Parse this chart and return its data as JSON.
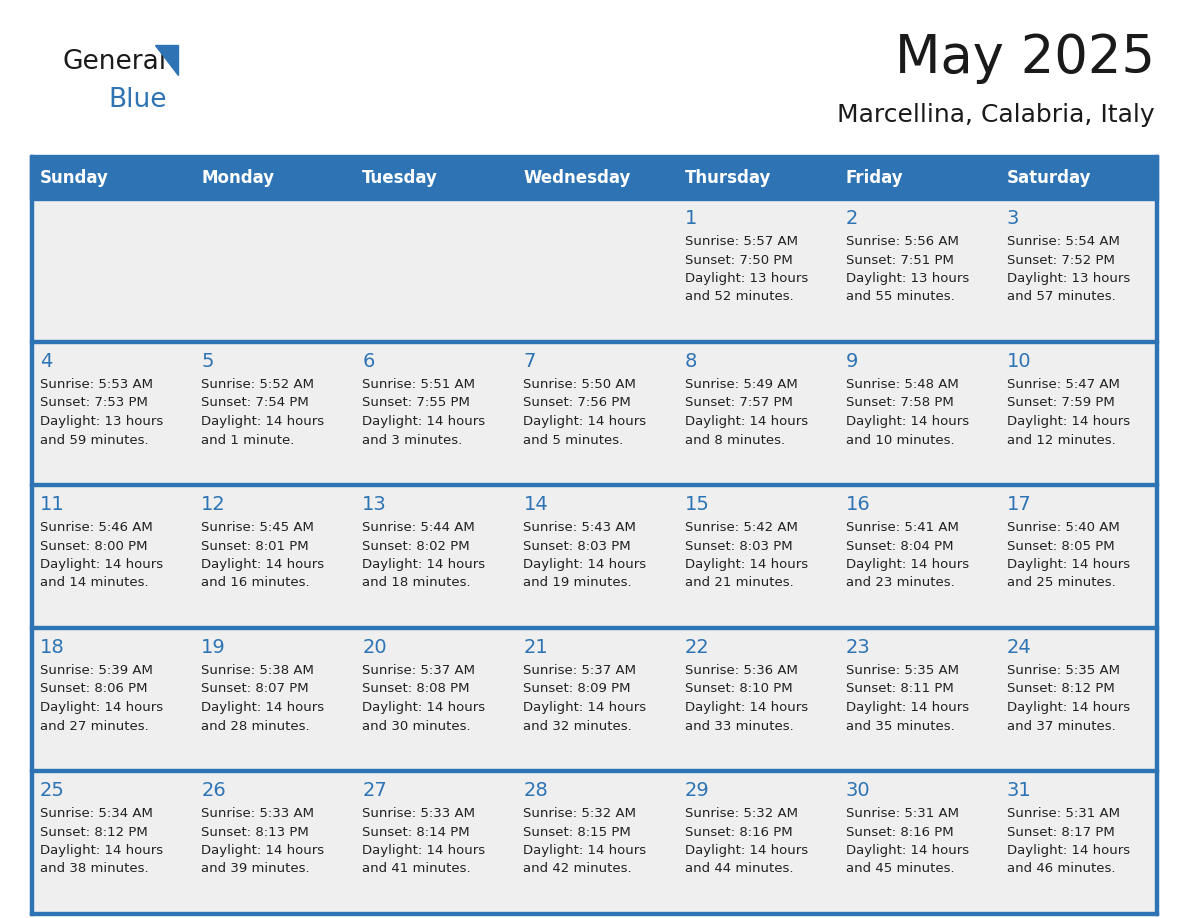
{
  "title": "May 2025",
  "subtitle": "Marcellina, Calabria, Italy",
  "days_of_week": [
    "Sunday",
    "Monday",
    "Tuesday",
    "Wednesday",
    "Thursday",
    "Friday",
    "Saturday"
  ],
  "header_bg": "#2E74B5",
  "header_text": "#FFFFFF",
  "row_bg": "#EFEFEF",
  "divider_color": "#2E74B5",
  "day_number_color": "#2E74B5",
  "cell_text_color": "#222222",
  "title_color": "#1a1a1a",
  "subtitle_color": "#1a1a1a",
  "logo_general_color": "#1a1a1a",
  "logo_blue_color": "#2E74B5",
  "calendar_data": [
    [
      {
        "day": "",
        "info": ""
      },
      {
        "day": "",
        "info": ""
      },
      {
        "day": "",
        "info": ""
      },
      {
        "day": "",
        "info": ""
      },
      {
        "day": "1",
        "info": "Sunrise: 5:57 AM\nSunset: 7:50 PM\nDaylight: 13 hours\nand 52 minutes."
      },
      {
        "day": "2",
        "info": "Sunrise: 5:56 AM\nSunset: 7:51 PM\nDaylight: 13 hours\nand 55 minutes."
      },
      {
        "day": "3",
        "info": "Sunrise: 5:54 AM\nSunset: 7:52 PM\nDaylight: 13 hours\nand 57 minutes."
      }
    ],
    [
      {
        "day": "4",
        "info": "Sunrise: 5:53 AM\nSunset: 7:53 PM\nDaylight: 13 hours\nand 59 minutes."
      },
      {
        "day": "5",
        "info": "Sunrise: 5:52 AM\nSunset: 7:54 PM\nDaylight: 14 hours\nand 1 minute."
      },
      {
        "day": "6",
        "info": "Sunrise: 5:51 AM\nSunset: 7:55 PM\nDaylight: 14 hours\nand 3 minutes."
      },
      {
        "day": "7",
        "info": "Sunrise: 5:50 AM\nSunset: 7:56 PM\nDaylight: 14 hours\nand 5 minutes."
      },
      {
        "day": "8",
        "info": "Sunrise: 5:49 AM\nSunset: 7:57 PM\nDaylight: 14 hours\nand 8 minutes."
      },
      {
        "day": "9",
        "info": "Sunrise: 5:48 AM\nSunset: 7:58 PM\nDaylight: 14 hours\nand 10 minutes."
      },
      {
        "day": "10",
        "info": "Sunrise: 5:47 AM\nSunset: 7:59 PM\nDaylight: 14 hours\nand 12 minutes."
      }
    ],
    [
      {
        "day": "11",
        "info": "Sunrise: 5:46 AM\nSunset: 8:00 PM\nDaylight: 14 hours\nand 14 minutes."
      },
      {
        "day": "12",
        "info": "Sunrise: 5:45 AM\nSunset: 8:01 PM\nDaylight: 14 hours\nand 16 minutes."
      },
      {
        "day": "13",
        "info": "Sunrise: 5:44 AM\nSunset: 8:02 PM\nDaylight: 14 hours\nand 18 minutes."
      },
      {
        "day": "14",
        "info": "Sunrise: 5:43 AM\nSunset: 8:03 PM\nDaylight: 14 hours\nand 19 minutes."
      },
      {
        "day": "15",
        "info": "Sunrise: 5:42 AM\nSunset: 8:03 PM\nDaylight: 14 hours\nand 21 minutes."
      },
      {
        "day": "16",
        "info": "Sunrise: 5:41 AM\nSunset: 8:04 PM\nDaylight: 14 hours\nand 23 minutes."
      },
      {
        "day": "17",
        "info": "Sunrise: 5:40 AM\nSunset: 8:05 PM\nDaylight: 14 hours\nand 25 minutes."
      }
    ],
    [
      {
        "day": "18",
        "info": "Sunrise: 5:39 AM\nSunset: 8:06 PM\nDaylight: 14 hours\nand 27 minutes."
      },
      {
        "day": "19",
        "info": "Sunrise: 5:38 AM\nSunset: 8:07 PM\nDaylight: 14 hours\nand 28 minutes."
      },
      {
        "day": "20",
        "info": "Sunrise: 5:37 AM\nSunset: 8:08 PM\nDaylight: 14 hours\nand 30 minutes."
      },
      {
        "day": "21",
        "info": "Sunrise: 5:37 AM\nSunset: 8:09 PM\nDaylight: 14 hours\nand 32 minutes."
      },
      {
        "day": "22",
        "info": "Sunrise: 5:36 AM\nSunset: 8:10 PM\nDaylight: 14 hours\nand 33 minutes."
      },
      {
        "day": "23",
        "info": "Sunrise: 5:35 AM\nSunset: 8:11 PM\nDaylight: 14 hours\nand 35 minutes."
      },
      {
        "day": "24",
        "info": "Sunrise: 5:35 AM\nSunset: 8:12 PM\nDaylight: 14 hours\nand 37 minutes."
      }
    ],
    [
      {
        "day": "25",
        "info": "Sunrise: 5:34 AM\nSunset: 8:12 PM\nDaylight: 14 hours\nand 38 minutes."
      },
      {
        "day": "26",
        "info": "Sunrise: 5:33 AM\nSunset: 8:13 PM\nDaylight: 14 hours\nand 39 minutes."
      },
      {
        "day": "27",
        "info": "Sunrise: 5:33 AM\nSunset: 8:14 PM\nDaylight: 14 hours\nand 41 minutes."
      },
      {
        "day": "28",
        "info": "Sunrise: 5:32 AM\nSunset: 8:15 PM\nDaylight: 14 hours\nand 42 minutes."
      },
      {
        "day": "29",
        "info": "Sunrise: 5:32 AM\nSunset: 8:16 PM\nDaylight: 14 hours\nand 44 minutes."
      },
      {
        "day": "30",
        "info": "Sunrise: 5:31 AM\nSunset: 8:16 PM\nDaylight: 14 hours\nand 45 minutes."
      },
      {
        "day": "31",
        "info": "Sunrise: 5:31 AM\nSunset: 8:17 PM\nDaylight: 14 hours\nand 46 minutes."
      }
    ]
  ]
}
